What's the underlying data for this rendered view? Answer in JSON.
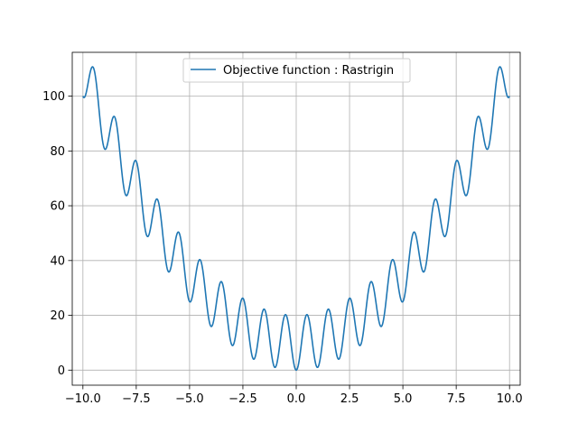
{
  "chart_data": {
    "type": "line",
    "title": "",
    "xlabel": "",
    "ylabel": "",
    "xlim": [
      -10.5,
      10.5
    ],
    "ylim": [
      -5.5,
      116.0
    ],
    "grid": true,
    "legend_position": "top-center",
    "x_ticks": [
      -10.0,
      -7.5,
      -5.0,
      -2.5,
      0.0,
      2.5,
      5.0,
      7.5,
      10.0
    ],
    "x_tick_labels": [
      "−10.0",
      "−7.5",
      "−5.0",
      "−2.5",
      "0.0",
      "2.5",
      "5.0",
      "7.5",
      "10.0"
    ],
    "y_ticks": [
      0,
      20,
      40,
      60,
      80,
      100
    ],
    "y_tick_labels": [
      "0",
      "20",
      "40",
      "60",
      "80",
      "100"
    ],
    "series": [
      {
        "name": "Objective function : Rastrigin",
        "color": "#1f77b4",
        "function": "x^2 - 10*cos(2*pi*x) + 10",
        "x_range": [
          -10,
          10
        ],
        "sample_points": [
          {
            "x": -10.0,
            "y": 100.0
          },
          {
            "x": -9.5,
            "y": 110.25
          },
          {
            "x": -9.0,
            "y": 81.0
          },
          {
            "x": -8.5,
            "y": 92.25
          },
          {
            "x": -8.0,
            "y": 64.0
          },
          {
            "x": -7.5,
            "y": 76.25
          },
          {
            "x": -7.0,
            "y": 49.0
          },
          {
            "x": -6.5,
            "y": 62.25
          },
          {
            "x": -6.0,
            "y": 36.0
          },
          {
            "x": -5.5,
            "y": 50.25
          },
          {
            "x": -5.0,
            "y": 25.0
          },
          {
            "x": -4.5,
            "y": 40.25
          },
          {
            "x": -4.0,
            "y": 16.0
          },
          {
            "x": -3.5,
            "y": 32.25
          },
          {
            "x": -3.0,
            "y": 9.0
          },
          {
            "x": -2.5,
            "y": 26.25
          },
          {
            "x": -2.0,
            "y": 4.0
          },
          {
            "x": -1.5,
            "y": 22.25
          },
          {
            "x": -1.0,
            "y": 1.0
          },
          {
            "x": -0.5,
            "y": 20.25
          },
          {
            "x": 0.0,
            "y": 0.0
          },
          {
            "x": 0.5,
            "y": 20.25
          },
          {
            "x": 1.0,
            "y": 1.0
          },
          {
            "x": 1.5,
            "y": 22.25
          },
          {
            "x": 2.0,
            "y": 4.0
          },
          {
            "x": 2.5,
            "y": 26.25
          },
          {
            "x": 3.0,
            "y": 9.0
          },
          {
            "x": 3.5,
            "y": 32.25
          },
          {
            "x": 4.0,
            "y": 16.0
          },
          {
            "x": 4.5,
            "y": 40.25
          },
          {
            "x": 5.0,
            "y": 25.0
          },
          {
            "x": 5.5,
            "y": 50.25
          },
          {
            "x": 6.0,
            "y": 36.0
          },
          {
            "x": 6.5,
            "y": 62.25
          },
          {
            "x": 7.0,
            "y": 49.0
          },
          {
            "x": 7.5,
            "y": 76.25
          },
          {
            "x": 8.0,
            "y": 64.0
          },
          {
            "x": 8.5,
            "y": 92.25
          },
          {
            "x": 9.0,
            "y": 81.0
          },
          {
            "x": 9.5,
            "y": 110.25
          },
          {
            "x": 10.0,
            "y": 100.0
          }
        ]
      }
    ],
    "colors": {
      "grid": "#b0b0b0",
      "axes": "#000000",
      "legend_border": "#cccccc"
    }
  }
}
